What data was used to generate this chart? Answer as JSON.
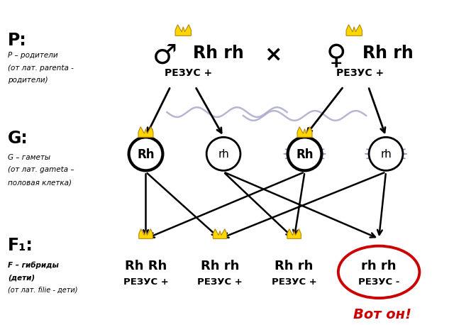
{
  "bg_color": "#ffffff",
  "p_label": "P:",
  "p_desc": [
    "P – родители",
    "(от лат. parenta -",
    "родители)"
  ],
  "g_label": "G:",
  "g_desc": [
    "G – гаметы",
    "(от лат. gameta –",
    "половая клетка)"
  ],
  "f1_label": "F₁:",
  "f1_desc": [
    "F – гибриды",
    "(дети)",
    "(от лат. filie - дети)"
  ],
  "rezus_plus": "РЕЗУС +",
  "rezus_minus": "РЕЗУС –",
  "vot_on": "Вот он!",
  "crown_color": "#FFD700",
  "crown_edge": "#B8860B",
  "starburst_color": "#ccccee",
  "gamete_circle_color": "#000000",
  "arrow_color": "#000000",
  "wavy_color": "#aaaacc",
  "red_circle_color": "#cc0000",
  "vot_color": "#cc0000"
}
